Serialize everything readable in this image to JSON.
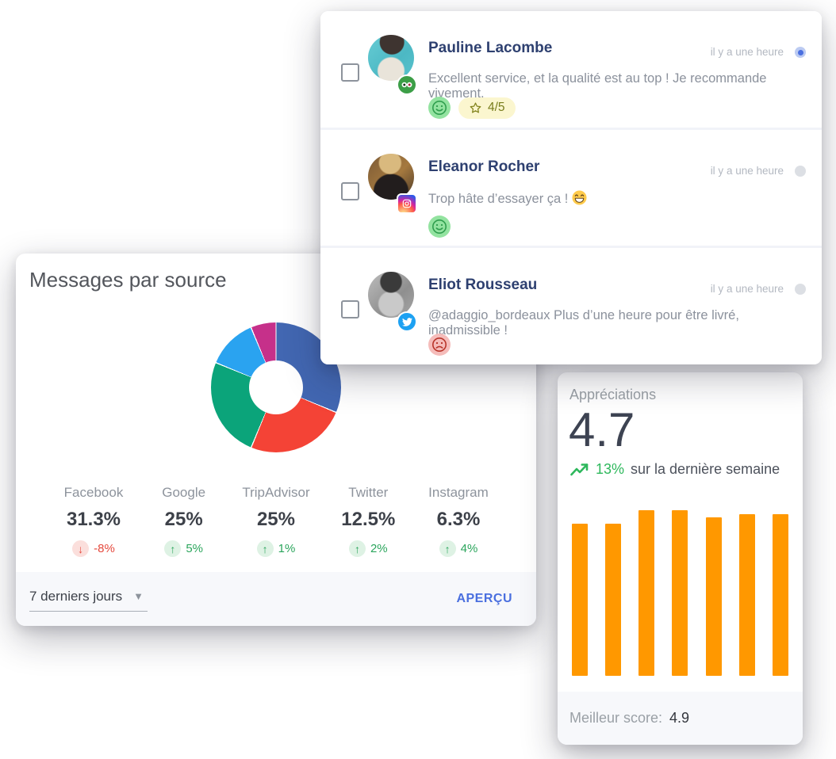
{
  "messages_panel": {
    "items": [
      {
        "name": "Pauline Lacombe",
        "time": "il y a une heure",
        "unread": true,
        "network": "tripadvisor",
        "text": "Excellent service, et la qualité est au top ! Je recommande vivement.",
        "sentiment": "happy",
        "rating": "4/5"
      },
      {
        "name": "Eleanor Rocher",
        "time": "il y a une heure",
        "unread": false,
        "network": "instagram",
        "text": "Trop hâte d’essayer ça !",
        "emoji": "grinning-face",
        "sentiment": "happy"
      },
      {
        "name": "Eliot Rousseau",
        "time": "il y a une heure",
        "unread": false,
        "network": "twitter",
        "text": "@adaggio_bordeaux Plus d’une heure pour être livré, inadmissible !",
        "sentiment": "sad"
      }
    ]
  },
  "source_panel": {
    "title": "Messages par source",
    "stats": [
      {
        "label": "Facebook",
        "value": "31.3%",
        "change": "-8%",
        "direction": "down"
      },
      {
        "label": "Google",
        "value": "25%",
        "change": "5%",
        "direction": "up"
      },
      {
        "label": "TripAdvisor",
        "value": "25%",
        "change": "1%",
        "direction": "up"
      },
      {
        "label": "Twitter",
        "value": "12.5%",
        "change": "2%",
        "direction": "up"
      },
      {
        "label": "Instagram",
        "value": "6.3%",
        "change": "4%",
        "direction": "up"
      }
    ],
    "period_select": "7 derniers jours",
    "action": "APERÇU"
  },
  "ratings_panel": {
    "title": "Appréciations",
    "score": "4.7",
    "trend_percent": "13%",
    "trend_text": "sur la dernière semaine",
    "footer_label": "Meilleur score:",
    "footer_value": "4.9"
  },
  "colors": {
    "positive": "#2ba55c",
    "negative": "#e5493d",
    "action_blue": "#4a6fdf",
    "bar_orange": "#ff9800",
    "happy_badge_bg": "#93e3a0",
    "happy_badge_stroke": "#2f9e4e",
    "sad_badge_bg": "#f5bcba",
    "sad_badge_stroke": "#b8342a",
    "rating_chip_bg": "#fbf6cf",
    "rating_chip_text": "#787d1c"
  },
  "chart_data": [
    {
      "type": "pie",
      "subtype": "donut",
      "title": "Messages par source",
      "labels": [
        "Facebook",
        "Google",
        "TripAdvisor",
        "Twitter",
        "Instagram"
      ],
      "values": [
        31.3,
        25,
        25,
        12.5,
        6.3
      ],
      "colors": [
        "#4267b2",
        "#f44336",
        "#0ba47a",
        "#2aa3f0",
        "#c6308a"
      ],
      "changes": [
        "-8%",
        "+5%",
        "+1%",
        "+2%",
        "+4%"
      ],
      "legend_position": "none",
      "start_angle_deg": 0
    },
    {
      "type": "bar",
      "title": "Appréciations (7 derniers jours)",
      "categories": [
        "j1",
        "j2",
        "j3",
        "j4",
        "j5",
        "j6",
        "j7"
      ],
      "values": [
        4.5,
        4.5,
        4.9,
        4.9,
        4.7,
        4.8,
        4.8
      ],
      "ylim": [
        0,
        5
      ],
      "color": "#ff9800",
      "axes_visible": false,
      "best_score": 4.9
    }
  ]
}
